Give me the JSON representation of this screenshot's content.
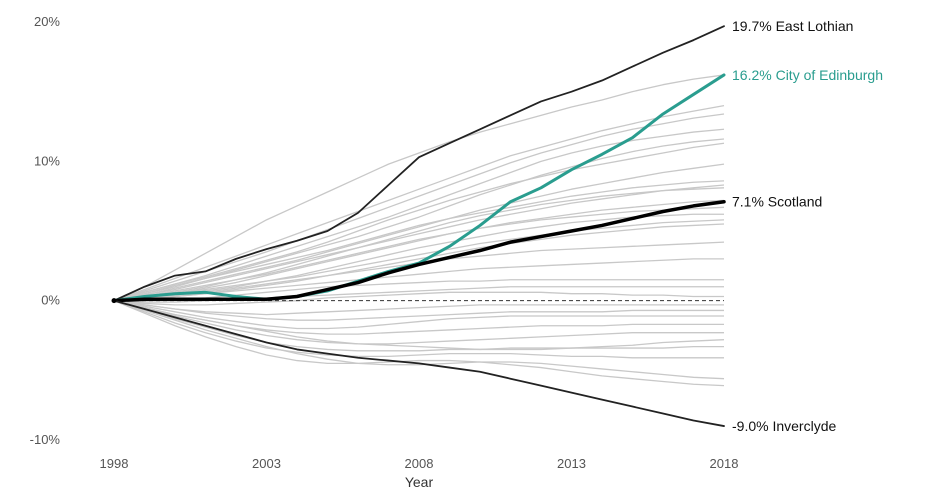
{
  "chart_data": {
    "type": "line",
    "title": "",
    "xlabel": "Year",
    "ylabel": "",
    "xlim": [
      1998,
      2018
    ],
    "ylim": [
      -10,
      20
    ],
    "x_ticks": [
      1998,
      2003,
      2008,
      2013,
      2018
    ],
    "x_tick_labels": [
      "1998",
      "2003",
      "2008",
      "2013",
      "2018"
    ],
    "y_ticks": [
      -10,
      0,
      10,
      20
    ],
    "y_tick_labels": [
      "-10%",
      "0%",
      "10%",
      "20%"
    ],
    "grid": false,
    "baseline": 0,
    "x": [
      1998,
      1999,
      2000,
      2001,
      2002,
      2003,
      2004,
      2005,
      2006,
      2007,
      2008,
      2009,
      2010,
      2011,
      2012,
      2013,
      2014,
      2015,
      2016,
      2017,
      2018
    ],
    "highlighted_series": [
      {
        "name": "East Lothian",
        "end_label": "19.7% East Lothian",
        "color": "#222222",
        "values": [
          0,
          1.0,
          1.8,
          2.1,
          3.0,
          3.7,
          4.3,
          5.0,
          6.3,
          8.3,
          10.3,
          11.3,
          12.3,
          13.3,
          14.3,
          15.0,
          15.8,
          16.8,
          17.8,
          18.7,
          19.7
        ]
      },
      {
        "name": "City of Edinburgh",
        "end_label": "16.2% City of Edinburgh",
        "color": "#2a9d8f",
        "values": [
          0,
          0.3,
          0.5,
          0.6,
          0.3,
          0.1,
          0.3,
          0.7,
          1.4,
          2.1,
          2.7,
          3.9,
          5.4,
          7.1,
          8.1,
          9.4,
          10.5,
          11.7,
          13.4,
          14.8,
          16.2
        ]
      },
      {
        "name": "Scotland",
        "end_label": "7.1% Scotland",
        "color": "#000000",
        "values": [
          0,
          0.1,
          0.1,
          0.1,
          0.1,
          0.1,
          0.3,
          0.8,
          1.3,
          2.0,
          2.6,
          3.1,
          3.6,
          4.2,
          4.6,
          5.0,
          5.4,
          5.9,
          6.4,
          6.8,
          7.1
        ]
      },
      {
        "name": "Inverclyde",
        "end_label": "-9.0% Inverclyde",
        "color": "#222222",
        "values": [
          0,
          -0.6,
          -1.2,
          -1.8,
          -2.4,
          -3.0,
          -3.5,
          -3.8,
          -4.1,
          -4.3,
          -4.5,
          -4.8,
          -5.1,
          -5.6,
          -6.1,
          -6.6,
          -7.1,
          -7.6,
          -8.1,
          -8.6,
          -9.0
        ]
      }
    ],
    "background_series_color": "#c8c8c8",
    "background_series": [
      {
        "values": [
          0,
          1.0,
          2.2,
          3.4,
          4.6,
          5.8,
          6.8,
          7.8,
          8.8,
          9.8,
          10.6,
          11.4,
          12.1,
          12.7,
          13.3,
          13.9,
          14.4,
          15.0,
          15.5,
          15.9,
          16.2
        ]
      },
      {
        "values": [
          0,
          0.8,
          1.6,
          2.4,
          3.2,
          4.0,
          4.8,
          5.6,
          6.4,
          7.2,
          8.0,
          8.8,
          9.6,
          10.4,
          11.0,
          11.6,
          12.2,
          12.7,
          13.2,
          13.6,
          14.0
        ]
      },
      {
        "values": [
          0,
          0.7,
          1.4,
          2.1,
          2.8,
          3.5,
          4.3,
          5.1,
          5.9,
          6.7,
          7.5,
          8.3,
          9.1,
          9.9,
          10.6,
          11.2,
          11.8,
          12.3,
          12.7,
          13.1,
          13.4
        ]
      },
      {
        "values": [
          0,
          0.6,
          1.2,
          1.8,
          2.5,
          3.2,
          3.9,
          4.6,
          5.3,
          6.0,
          6.8,
          7.6,
          8.4,
          9.2,
          10.0,
          10.6,
          11.1,
          11.5,
          11.8,
          12.1,
          12.3
        ]
      },
      {
        "values": [
          0,
          0.5,
          1.0,
          1.6,
          2.2,
          2.8,
          3.4,
          4.0,
          4.6,
          5.3,
          6.0,
          6.8,
          7.6,
          8.3,
          9.0,
          9.6,
          10.2,
          10.7,
          11.1,
          11.4,
          11.6
        ]
      },
      {
        "values": [
          0,
          0.6,
          1.2,
          1.7,
          2.3,
          2.9,
          3.5,
          4.2,
          5.0,
          5.8,
          6.5,
          7.2,
          7.8,
          8.4,
          8.9,
          9.4,
          9.8,
          10.2,
          10.6,
          11.0,
          11.3
        ]
      },
      {
        "values": [
          0,
          0.4,
          0.9,
          1.4,
          1.9,
          2.4,
          2.9,
          3.5,
          4.1,
          4.7,
          5.3,
          5.9,
          6.5,
          7.0,
          7.5,
          8.0,
          8.4,
          8.8,
          9.2,
          9.5,
          9.8
        ]
      },
      {
        "values": [
          0,
          0.5,
          1.1,
          1.6,
          2.1,
          2.6,
          3.1,
          3.6,
          4.2,
          4.8,
          5.4,
          5.9,
          6.3,
          6.7,
          7.1,
          7.5,
          7.8,
          8.1,
          8.3,
          8.5,
          8.6
        ]
      },
      {
        "values": [
          0,
          0.4,
          0.8,
          1.3,
          1.8,
          2.3,
          2.8,
          3.3,
          3.8,
          4.3,
          4.8,
          5.3,
          5.8,
          6.2,
          6.6,
          7.0,
          7.3,
          7.6,
          7.9,
          8.1,
          8.3
        ]
      },
      {
        "values": [
          0,
          0.3,
          0.6,
          1.0,
          1.5,
          2.0,
          2.6,
          3.2,
          3.8,
          4.4,
          5.0,
          5.6,
          6.1,
          6.5,
          6.9,
          7.2,
          7.5,
          7.7,
          7.9,
          8.0,
          8.1
        ]
      },
      {
        "values": [
          0,
          0.3,
          0.7,
          1.1,
          1.5,
          1.9,
          2.4,
          2.9,
          3.4,
          3.9,
          4.4,
          4.8,
          5.2,
          5.6,
          5.9,
          6.2,
          6.5,
          6.7,
          6.9,
          7.1,
          7.2
        ]
      },
      {
        "values": [
          0,
          0.2,
          0.5,
          0.9,
          1.3,
          1.8,
          2.3,
          2.8,
          3.3,
          3.8,
          4.3,
          4.8,
          5.2,
          5.5,
          5.8,
          6.0,
          6.2,
          6.4,
          6.5,
          6.6,
          6.7
        ]
      },
      {
        "values": [
          0,
          0.2,
          0.4,
          0.7,
          1.0,
          1.4,
          1.8,
          2.3,
          2.8,
          3.3,
          3.8,
          4.2,
          4.6,
          5.0,
          5.3,
          5.6,
          5.8,
          6.0,
          6.1,
          6.2,
          6.2
        ]
      },
      {
        "values": [
          0,
          0.3,
          0.5,
          0.8,
          1.1,
          1.4,
          1.7,
          2.1,
          2.5,
          2.9,
          3.3,
          3.7,
          4.1,
          4.4,
          4.7,
          5.0,
          5.2,
          5.4,
          5.6,
          5.7,
          5.8
        ]
      },
      {
        "values": [
          0,
          0.1,
          0.3,
          0.5,
          0.8,
          1.1,
          1.4,
          1.8,
          2.2,
          2.6,
          3.0,
          3.4,
          3.8,
          4.1,
          4.4,
          4.7,
          4.9,
          5.1,
          5.3,
          5.4,
          5.5
        ]
      },
      {
        "values": [
          0,
          0.2,
          0.4,
          0.6,
          0.9,
          1.2,
          1.5,
          1.8,
          2.1,
          2.4,
          2.7,
          3.0,
          3.2,
          3.4,
          3.6,
          3.7,
          3.8,
          3.9,
          4.0,
          4.1,
          4.2
        ]
      },
      {
        "values": [
          0,
          0.1,
          0.3,
          0.5,
          0.7,
          0.9,
          1.1,
          1.3,
          1.5,
          1.7,
          1.9,
          2.1,
          2.3,
          2.4,
          2.5,
          2.6,
          2.7,
          2.8,
          2.9,
          3.0,
          3.0
        ]
      },
      {
        "values": [
          0,
          0.0,
          0.1,
          0.2,
          0.4,
          0.6,
          0.8,
          1.0,
          1.1,
          1.2,
          1.3,
          1.4,
          1.4,
          1.5,
          1.5,
          1.5,
          1.5,
          1.5,
          1.5,
          1.5,
          1.5
        ]
      },
      {
        "values": [
          0,
          -0.1,
          -0.1,
          0.0,
          0.1,
          0.2,
          0.3,
          0.4,
          0.5,
          0.6,
          0.7,
          0.8,
          0.9,
          1.0,
          1.0,
          1.0,
          1.0,
          1.0,
          1.0,
          1.0,
          1.0
        ]
      },
      {
        "values": [
          0,
          -0.2,
          -0.3,
          -0.3,
          -0.2,
          -0.1,
          0.0,
          0.2,
          0.3,
          0.4,
          0.5,
          0.6,
          0.6,
          0.6,
          0.6,
          0.5,
          0.5,
          0.4,
          0.4,
          0.3,
          0.3
        ]
      },
      {
        "values": [
          0,
          -0.3,
          -0.6,
          -0.8,
          -0.9,
          -1.0,
          -0.9,
          -0.8,
          -0.7,
          -0.6,
          -0.5,
          -0.4,
          -0.3,
          -0.3,
          -0.3,
          -0.3,
          -0.3,
          -0.3,
          -0.3,
          -0.3,
          -0.3
        ]
      },
      {
        "values": [
          0,
          -0.3,
          -0.6,
          -0.9,
          -1.1,
          -1.3,
          -1.4,
          -1.4,
          -1.3,
          -1.2,
          -1.1,
          -1.0,
          -0.9,
          -0.8,
          -0.8,
          -0.8,
          -0.8,
          -0.7,
          -0.7,
          -0.7,
          -0.7
        ]
      },
      {
        "values": [
          0,
          -0.4,
          -0.8,
          -1.2,
          -1.5,
          -1.8,
          -2.0,
          -2.0,
          -1.9,
          -1.7,
          -1.5,
          -1.3,
          -1.2,
          -1.1,
          -1.1,
          -1.1,
          -1.1,
          -1.1,
          -1.1,
          -1.1,
          -1.1
        ]
      },
      {
        "values": [
          0,
          -0.5,
          -1.0,
          -1.4,
          -1.8,
          -2.1,
          -2.3,
          -2.4,
          -2.4,
          -2.3,
          -2.2,
          -2.1,
          -2.0,
          -1.9,
          -1.8,
          -1.8,
          -1.8,
          -1.7,
          -1.7,
          -1.7,
          -1.7
        ]
      },
      {
        "values": [
          0,
          -0.5,
          -1.1,
          -1.6,
          -2.1,
          -2.5,
          -2.8,
          -3.0,
          -3.1,
          -3.1,
          -3.0,
          -2.9,
          -2.8,
          -2.7,
          -2.6,
          -2.5,
          -2.4,
          -2.3,
          -2.3,
          -2.3,
          -2.3
        ]
      },
      {
        "values": [
          0,
          -0.6,
          -1.3,
          -1.9,
          -2.5,
          -3.0,
          -3.3,
          -3.5,
          -3.6,
          -3.6,
          -3.6,
          -3.5,
          -3.5,
          -3.4,
          -3.4,
          -3.4,
          -3.4,
          -3.4,
          -3.4,
          -3.3,
          -3.3
        ]
      },
      {
        "values": [
          0,
          -0.8,
          -1.6,
          -2.3,
          -2.9,
          -3.4,
          -3.7,
          -3.9,
          -4.0,
          -4.0,
          -3.9,
          -3.8,
          -3.8,
          -3.8,
          -3.9,
          -4.0,
          -4.0,
          -4.1,
          -4.1,
          -4.1,
          -4.1
        ]
      },
      {
        "values": [
          0,
          -0.7,
          -1.4,
          -2.1,
          -2.7,
          -3.3,
          -3.8,
          -4.2,
          -4.5,
          -4.6,
          -4.6,
          -4.5,
          -4.4,
          -4.4,
          -4.5,
          -4.7,
          -4.9,
          -5.1,
          -5.3,
          -5.5,
          -5.6
        ]
      },
      {
        "values": [
          0,
          -0.9,
          -1.8,
          -2.6,
          -3.3,
          -3.9,
          -4.3,
          -4.5,
          -4.5,
          -4.4,
          -4.3,
          -4.3,
          -4.4,
          -4.6,
          -4.8,
          -5.1,
          -5.4,
          -5.6,
          -5.8,
          -6.0,
          -6.1
        ]
      },
      {
        "values": [
          0,
          -0.5,
          -1.0,
          -1.4,
          -1.8,
          -2.2,
          -2.6,
          -2.9,
          -3.1,
          -3.2,
          -3.3,
          -3.4,
          -3.5,
          -3.5,
          -3.5,
          -3.4,
          -3.3,
          -3.2,
          -3.0,
          -2.9,
          -2.8
        ]
      }
    ]
  }
}
